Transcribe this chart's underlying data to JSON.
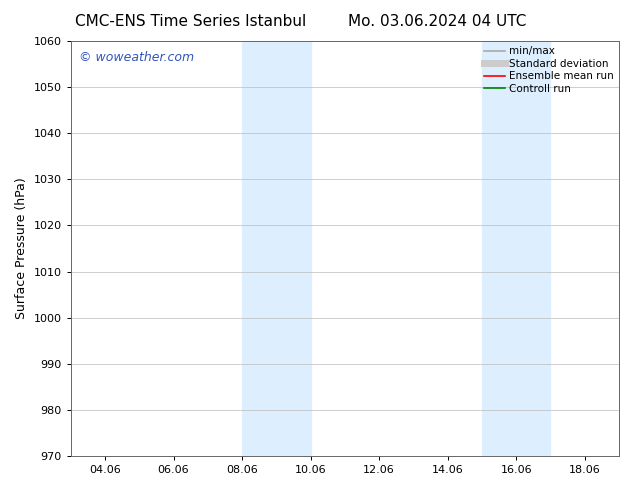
{
  "title_left": "CMC-ENS Time Series Istanbul",
  "title_right": "Mo. 03.06.2024 04 UTC",
  "ylabel": "Surface Pressure (hPa)",
  "ylim": [
    970,
    1060
  ],
  "yticks": [
    970,
    980,
    990,
    1000,
    1010,
    1020,
    1030,
    1040,
    1050,
    1060
  ],
  "xtick_labels": [
    "04.06",
    "06.06",
    "08.06",
    "10.06",
    "12.06",
    "14.06",
    "16.06",
    "18.06"
  ],
  "xtick_positions": [
    4,
    6,
    8,
    10,
    12,
    14,
    16,
    18
  ],
  "xlim": [
    3,
    19
  ],
  "shaded_bands": [
    {
      "x_start": 8,
      "x_end": 10
    },
    {
      "x_start": 15,
      "x_end": 17
    }
  ],
  "shaded_color": "#ddeeff",
  "watermark_text": "© woweather.com",
  "watermark_color": "#3355bb",
  "legend_items": [
    {
      "label": "min/max",
      "color": "#aaaaaa",
      "lw": 1.2
    },
    {
      "label": "Standard deviation",
      "color": "#cccccc",
      "lw": 5
    },
    {
      "label": "Ensemble mean run",
      "color": "red",
      "lw": 1.2
    },
    {
      "label": "Controll run",
      "color": "green",
      "lw": 1.2
    }
  ],
  "bg_color": "#ffffff",
  "grid_color": "#bbbbbb",
  "title_fontsize": 11,
  "axis_label_fontsize": 9,
  "tick_fontsize": 8,
  "watermark_fontsize": 9
}
